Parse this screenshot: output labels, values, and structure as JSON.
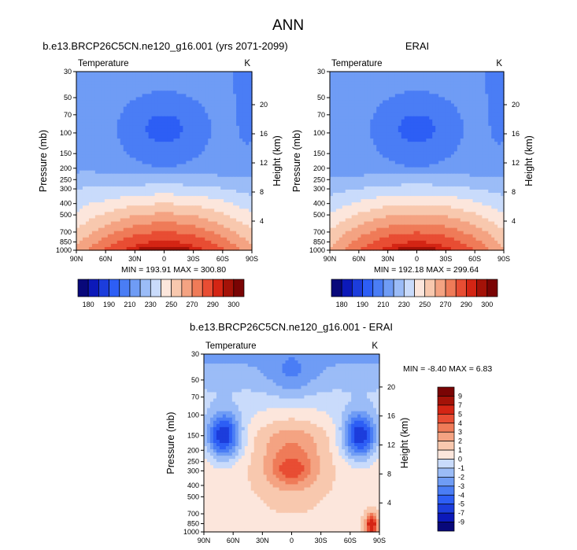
{
  "figure": {
    "title": "ANN"
  },
  "colors": {
    "temperature_scale": [
      "#08087a",
      "#0c19b9",
      "#1c3ddc",
      "#2d5ef5",
      "#4a7df5",
      "#6f9cf5",
      "#9bbcf7",
      "#c9dbfb",
      "#fce6dc",
      "#f8c8ae",
      "#f4a382",
      "#ef7b58",
      "#e84d33",
      "#d42514",
      "#a41208",
      "#7a0404"
    ],
    "difference_scale": [
      "#08087a",
      "#0c19b9",
      "#1c3ddc",
      "#2d5ef5",
      "#4a7df5",
      "#6f9cf5",
      "#9bbcf7",
      "#c9dbfb",
      "#fce6dc",
      "#f8c8ae",
      "#f4a382",
      "#ef7b58",
      "#e84d33",
      "#d42514",
      "#a41208",
      "#7a0404"
    ]
  },
  "chart_data": [
    {
      "type": "heatmap",
      "id": "model",
      "title": "b.e13.BRCP26C5CN.ne120_g16.001 (yrs 2071-2099)",
      "left_label": "Temperature",
      "right_label": "K",
      "xlabel": "",
      "ylabel": "Pressure (mb)",
      "ylabel_right": "Height (km)",
      "x_ticks": [
        "90N",
        "60N",
        "30N",
        "0",
        "30S",
        "60S",
        "90S"
      ],
      "x_range": [
        90,
        -90
      ],
      "y_ticks": [
        30,
        50,
        70,
        100,
        150,
        200,
        250,
        300,
        400,
        500,
        700,
        850,
        1000
      ],
      "y_range_mb": [
        30,
        1000
      ],
      "height_ticks_km": [
        20,
        16,
        12,
        8,
        4
      ],
      "stats": "MIN = 193.91  MAX = 300.80",
      "min": 193.91,
      "max": 300.8,
      "field": {
        "cold_core_lat": 0,
        "cold_core_mb": 95,
        "cold_core_K": 196,
        "warm_core_K": 300,
        "stratosphere_K": 212,
        "high_lat_anomaly_K": 4
      }
    },
    {
      "type": "heatmap",
      "id": "obs",
      "title": "ERAI",
      "left_label": "Temperature",
      "right_label": "K",
      "xlabel": "",
      "ylabel": "Pressure (mb)",
      "ylabel_right": "Height (km)",
      "x_ticks": [
        "90N",
        "60N",
        "30N",
        "0",
        "30S",
        "60S",
        "90S"
      ],
      "x_range": [
        90,
        -90
      ],
      "y_ticks": [
        30,
        50,
        70,
        100,
        150,
        200,
        250,
        300,
        400,
        500,
        700,
        850,
        1000
      ],
      "y_range_mb": [
        30,
        1000
      ],
      "height_ticks_km": [
        20,
        16,
        12,
        8,
        4
      ],
      "stats": "MIN = 192.18  MAX = 299.64",
      "min": 192.18,
      "max": 299.64,
      "field": {
        "cold_core_lat": 0,
        "cold_core_mb": 95,
        "cold_core_K": 196,
        "warm_core_K": 299,
        "stratosphere_K": 212,
        "high_lat_anomaly_K": 0
      }
    },
    {
      "type": "heatmap",
      "id": "diff",
      "title": "b.e13.BRCP26C5CN.ne120_g16.001 - ERAI",
      "left_label": "Temperature",
      "right_label": "K",
      "xlabel": "",
      "ylabel": "Pressure (mb)",
      "ylabel_right": "Height (km)",
      "x_ticks": [
        "90N",
        "60N",
        "30N",
        "0",
        "30S",
        "60S",
        "90S"
      ],
      "x_range": [
        90,
        -90
      ],
      "y_ticks": [
        30,
        50,
        70,
        100,
        150,
        200,
        250,
        300,
        400,
        500,
        700,
        850,
        1000
      ],
      "y_range_mb": [
        30,
        1000
      ],
      "height_ticks_km": [
        20,
        16,
        12,
        8,
        4
      ],
      "stats": "MIN = -8.40  MAX =  6.83",
      "min": -8.4,
      "max": 6.83
    }
  ],
  "colorbars": {
    "temperature": {
      "orientation": "horizontal",
      "levels": [
        180,
        185,
        190,
        200,
        210,
        220,
        230,
        240,
        250,
        260,
        270,
        280,
        290,
        295,
        300
      ],
      "labels": [
        "180",
        "190",
        "210",
        "230",
        "250",
        "270",
        "290",
        "300"
      ]
    },
    "difference": {
      "orientation": "vertical",
      "levels": [
        -9,
        -7,
        -5,
        -4,
        -3,
        -2,
        -1,
        0,
        1,
        2,
        3,
        4,
        5,
        7,
        9
      ],
      "labels": [
        "9",
        "7",
        "5",
        "4",
        "3",
        "2",
        "1",
        "0",
        "-1",
        "-2",
        "-3",
        "-4",
        "-5",
        "-7",
        "-9"
      ]
    }
  }
}
